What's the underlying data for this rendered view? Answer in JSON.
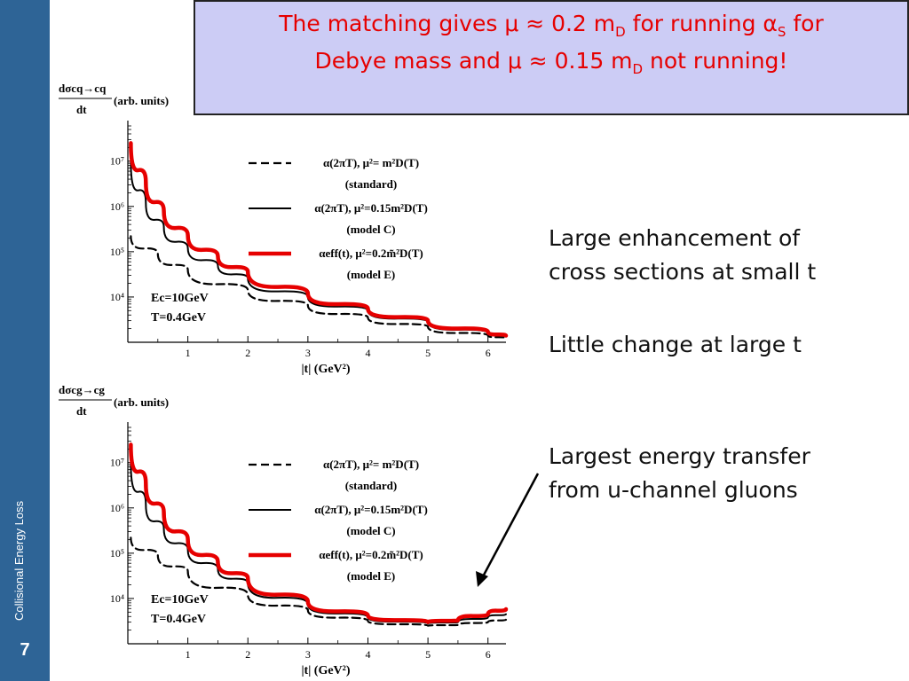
{
  "sidebar": {
    "title": "Collisional Energy Loss",
    "slide_number": "7"
  },
  "title": {
    "line1": {
      "pre": "The matching gives μ ≈ 0.2  m",
      "sub1": "D",
      "mid": "  for running α",
      "sub2": "S",
      "post": " for"
    },
    "line2": {
      "pre": "Debye mass and μ ≈ 0.15  m",
      "sub1": "D",
      "post": " not running!"
    }
  },
  "bullets": {
    "b1_line1": "Large enhancement of",
    "b1_line2": "cross sections at small t",
    "b2_line1": "Little change at large t",
    "b3_line1": "Largest energy transfer",
    "b3_line2": "from u-channel gluons"
  },
  "colors": {
    "sidebar": "#2e6496",
    "title_box": "#ccccf5",
    "title_text": "#e60000",
    "model_e": "#e60000"
  },
  "chart_data": [
    {
      "type": "line",
      "ylabel_num": "dσcq→cq",
      "ylabel_den": "dt",
      "ylabel_unit": "(arb. units)",
      "xlabel": "|t| (GeV²)",
      "x_ticks": [
        "1",
        "2",
        "3",
        "4",
        "5",
        "6"
      ],
      "y_ticks": [
        "10⁷",
        "10⁶",
        "10⁵",
        "10⁴"
      ],
      "yscale": "log",
      "xlim": [
        0,
        6.3
      ],
      "ylim": [
        1000,
        60000000
      ],
      "annotation_line1": "Ec=10GeV",
      "annotation_line2": "T=0.4GeV",
      "series": [
        {
          "name": "α(2πT), μ²= m²D(T)",
          "sublabel": "(standard)",
          "style": "dashed",
          "color": "#000000",
          "x": [
            0.05,
            0.5,
            1,
            2,
            3,
            4,
            5,
            6,
            6.3
          ],
          "y": [
            220000,
            90000,
            40000,
            14000,
            6500,
            3500,
            2200,
            1400,
            1250
          ]
        },
        {
          "name": "α(2πT), μ²=0.15m²D(T)",
          "sublabel": "(model C)",
          "style": "solid",
          "color": "#000000",
          "x": [
            0.05,
            0.3,
            0.6,
            1,
            1.5,
            2,
            3,
            4,
            5,
            6,
            6.3
          ],
          "y": [
            10000000,
            1200000,
            350000,
            120000,
            50000,
            26000,
            10000,
            5000,
            2800,
            1600,
            1350
          ]
        },
        {
          "name": "αeff(t), μ²=0.2m̃²D(T)",
          "sublabel": "(model E)",
          "style": "thick",
          "color": "#e60000",
          "x": [
            0.05,
            0.3,
            0.6,
            1,
            1.5,
            2,
            3,
            4,
            5,
            6,
            6.3
          ],
          "y": [
            25000000,
            3500000,
            800000,
            230000,
            80000,
            36000,
            12000,
            5500,
            3000,
            1700,
            1400
          ]
        }
      ]
    },
    {
      "type": "line",
      "ylabel_num": "dσcg→cg",
      "ylabel_den": "dt",
      "ylabel_unit": "(arb. units)",
      "xlabel": "|t| (GeV²)",
      "x_ticks": [
        "1",
        "2",
        "3",
        "4",
        "5",
        "6"
      ],
      "y_ticks": [
        "10⁷",
        "10⁶",
        "10⁵",
        "10⁴"
      ],
      "yscale": "log",
      "xlim": [
        0,
        6.3
      ],
      "ylim": [
        1000,
        60000000
      ],
      "annotation_line1": "Ec=10GeV",
      "annotation_line2": "T=0.4GeV",
      "series": [
        {
          "name": "α(2πT), μ²= m²D(T)",
          "sublabel": "(standard)",
          "style": "dashed",
          "color": "#000000",
          "x": [
            0.05,
            0.5,
            1,
            2,
            3,
            4,
            5,
            5.5,
            6,
            6.3
          ],
          "y": [
            220000,
            90000,
            40000,
            12000,
            5500,
            3200,
            2500,
            2600,
            3000,
            3400
          ]
        },
        {
          "name": "α(2πT), μ²=0.15m²D(T)",
          "sublabel": "(model C)",
          "style": "solid",
          "color": "#000000",
          "x": [
            0.05,
            0.3,
            0.6,
            1,
            1.5,
            2,
            3,
            4,
            5,
            5.5,
            6,
            6.3
          ],
          "y": [
            10000000,
            1200000,
            350000,
            120000,
            45000,
            22000,
            7500,
            3800,
            2800,
            3000,
            3800,
            4500
          ]
        },
        {
          "name": "αeff(t), μ²=0.2m̃²D(T)",
          "sublabel": "(model E)",
          "style": "thick",
          "color": "#e60000",
          "x": [
            0.05,
            0.3,
            0.6,
            1,
            1.5,
            2,
            3,
            4,
            5,
            5.5,
            6,
            6.3
          ],
          "y": [
            25000000,
            3500000,
            800000,
            200000,
            65000,
            28000,
            8500,
            4200,
            3000,
            3300,
            4500,
            5800
          ]
        }
      ]
    }
  ]
}
